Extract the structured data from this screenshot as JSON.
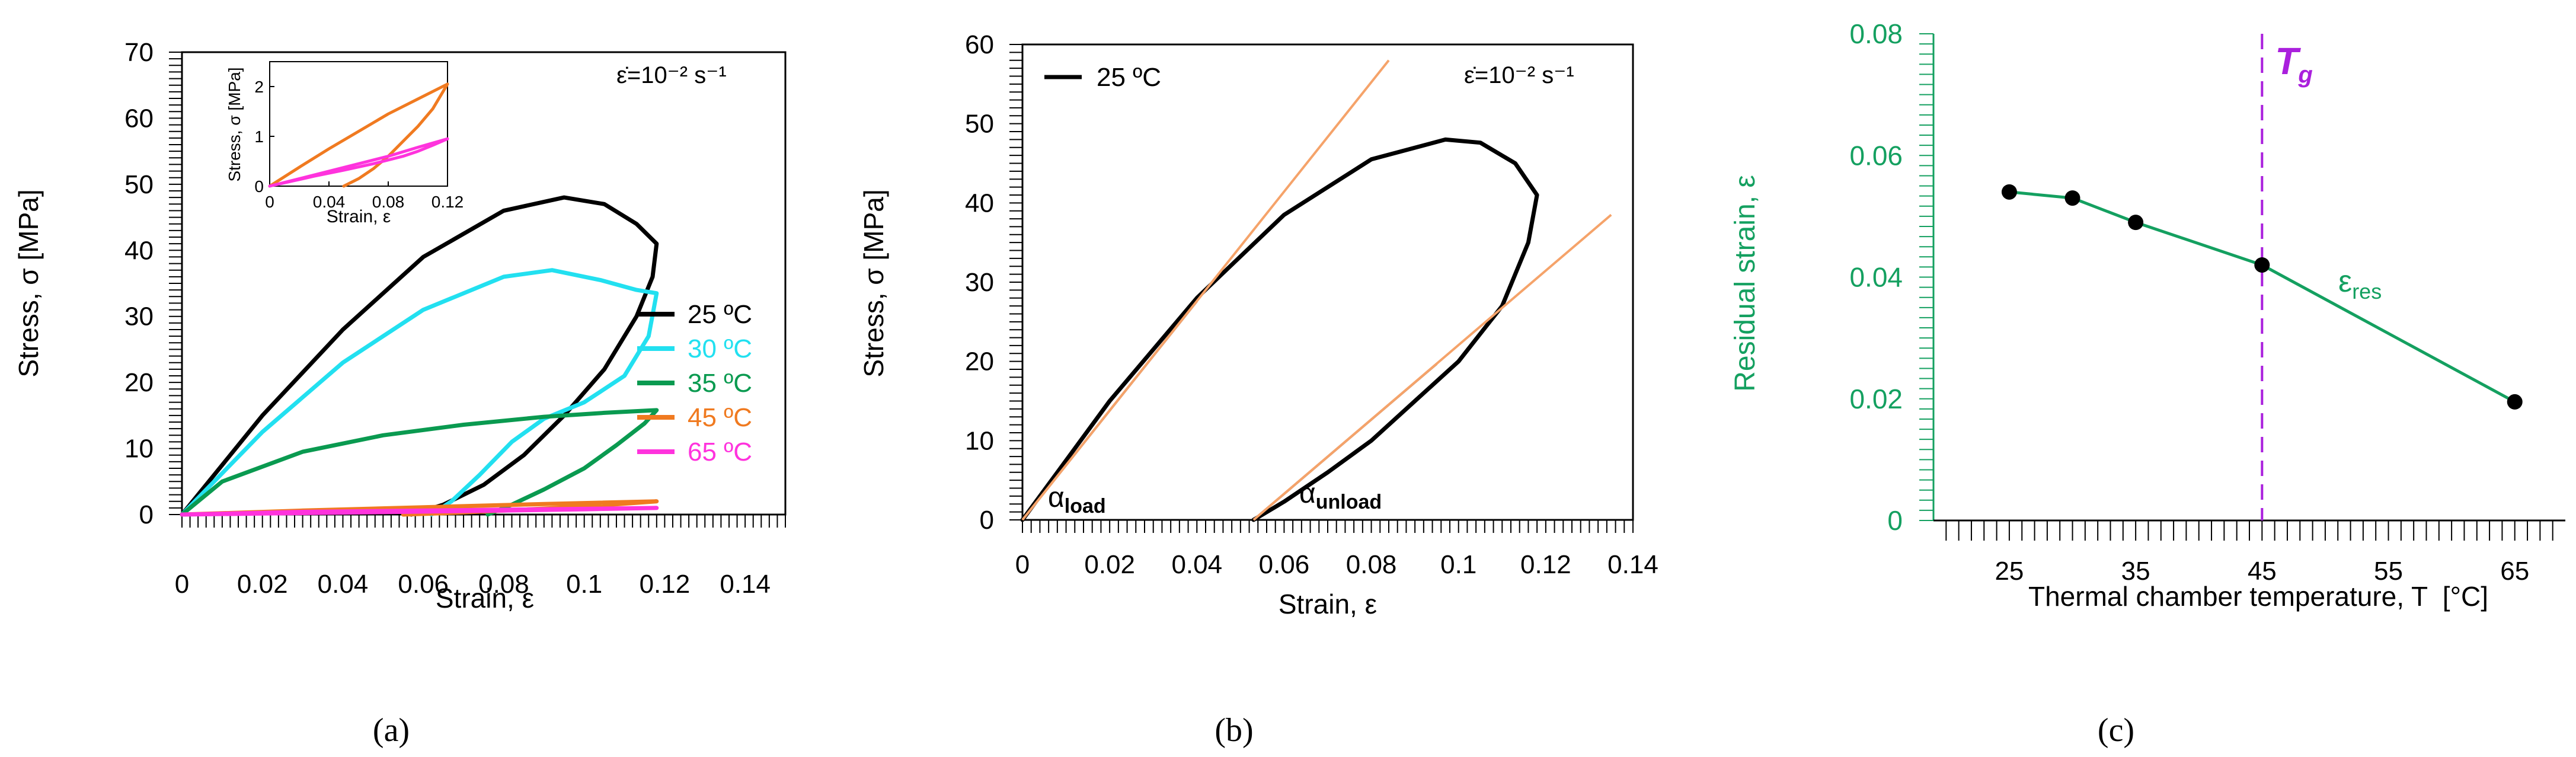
{
  "colors": {
    "black": "#000000",
    "cyan": "#22e0f0",
    "green": "#0a9a50",
    "orange": "#f07a20",
    "magenta": "#ff33dd",
    "tan": "#f5a36a",
    "brown": "#7a4a30",
    "purple": "#aa20dd",
    "teal": "#14a060"
  },
  "chart_data": [
    {
      "panel": "a",
      "caption": "(a)",
      "type": "line",
      "title": "",
      "annotation": "ε̇=10⁻² s⁻¹",
      "xlabel": "Strain, ε",
      "ylabel": "Stress, σ [MPa]",
      "xlim": [
        0,
        0.15
      ],
      "ylim": [
        0,
        70
      ],
      "xticks": [
        {
          "v": 0,
          "t": "0"
        },
        {
          "v": 0.02,
          "t": "0.02"
        },
        {
          "v": 0.04,
          "t": "0.04"
        },
        {
          "v": 0.06,
          "t": "0.06"
        },
        {
          "v": 0.08,
          "t": "0.08"
        },
        {
          "v": 0.1,
          "t": "0.1"
        },
        {
          "v": 0.12,
          "t": "0.12"
        },
        {
          "v": 0.14,
          "t": "0.14"
        }
      ],
      "yticks": [
        {
          "v": 0,
          "t": "0"
        },
        {
          "v": 10,
          "t": "10"
        },
        {
          "v": 20,
          "t": "20"
        },
        {
          "v": 30,
          "t": "30"
        },
        {
          "v": 40,
          "t": "40"
        },
        {
          "v": 50,
          "t": "50"
        },
        {
          "v": 60,
          "t": "60"
        },
        {
          "v": 70,
          "t": "70"
        }
      ],
      "legend_position": "right",
      "series": [
        {
          "name": "25 ºC",
          "color": "#000000",
          "x": [
            0,
            0.02,
            0.04,
            0.06,
            0.08,
            0.095,
            0.105,
            0.113,
            0.118,
            0.117,
            0.113,
            0.105,
            0.095,
            0.085,
            0.075,
            0.065,
            0.057
          ],
          "y": [
            0,
            15,
            28,
            39,
            46,
            48,
            47,
            44,
            41,
            36,
            30,
            22,
            15,
            9,
            4.5,
            1.5,
            0
          ]
        },
        {
          "name": "30 ºC",
          "color": "#22e0f0",
          "x": [
            0,
            0.02,
            0.04,
            0.06,
            0.08,
            0.092,
            0.104,
            0.113,
            0.118,
            0.116,
            0.11,
            0.1,
            0.09,
            0.082,
            0.074,
            0.067,
            0.062
          ],
          "y": [
            0,
            12.5,
            23,
            31,
            36,
            37,
            35.5,
            34,
            33.5,
            27,
            21,
            17,
            14.5,
            11,
            6,
            2,
            0
          ]
        },
        {
          "name": "35 ºC",
          "color": "#0a9a50",
          "x": [
            0,
            0.01,
            0.03,
            0.05,
            0.07,
            0.09,
            0.105,
            0.118,
            0.115,
            0.108,
            0.1,
            0.09,
            0.082,
            0.076
          ],
          "y": [
            0,
            5,
            9.5,
            12,
            13.6,
            14.8,
            15.4,
            15.8,
            13.8,
            10.5,
            7,
            3.8,
            1.5,
            0
          ]
        },
        {
          "name": "45 ºC",
          "color": "#f07a20",
          "x": [
            0,
            0.03,
            0.06,
            0.09,
            0.118,
            0.1,
            0.08,
            0.065,
            0.055
          ],
          "y": [
            0,
            0.6,
            1.1,
            1.6,
            2.0,
            1.2,
            0.6,
            0.2,
            0
          ]
        },
        {
          "name": "65 ºC",
          "color": "#ff33dd",
          "x": [
            0,
            0.03,
            0.06,
            0.09,
            0.118,
            0.1,
            0.08,
            0.06,
            0.04,
            0.02,
            0
          ],
          "y": [
            0,
            0.4,
            0.6,
            0.8,
            1.0,
            0.8,
            0.6,
            0.45,
            0.3,
            0.15,
            0
          ]
        }
      ],
      "inset": {
        "type": "line",
        "xlabel": "Strain, ε",
        "ylabel": "Stress, σ [MPa]",
        "xlim": [
          0,
          0.12
        ],
        "ylim": [
          0,
          2.5
        ],
        "xticks": [
          {
            "v": 0,
            "t": "0"
          },
          {
            "v": 0.04,
            "t": "0.04"
          },
          {
            "v": 0.08,
            "t": "0.08"
          },
          {
            "v": 0.12,
            "t": "0.12"
          }
        ],
        "yticks": [
          {
            "v": 0,
            "t": "0"
          },
          {
            "v": 1,
            "t": "1"
          },
          {
            "v": 2,
            "t": "2"
          }
        ],
        "series": [
          {
            "name": "45 ºC",
            "color": "#f07a20",
            "x": [
              0,
              0.02,
              0.04,
              0.06,
              0.08,
              0.1,
              0.12,
              0.11,
              0.1,
              0.09,
              0.08,
              0.07,
              0.06,
              0.05
            ],
            "y": [
              0,
              0.38,
              0.75,
              1.1,
              1.45,
              1.75,
              2.05,
              1.55,
              1.2,
              0.9,
              0.6,
              0.35,
              0.15,
              0
            ]
          },
          {
            "name": "65 ºC",
            "color": "#ff33dd",
            "x": [
              0,
              0.02,
              0.04,
              0.06,
              0.08,
              0.1,
              0.12,
              0.11,
              0.1,
              0.09,
              0.07,
              0.05,
              0.03,
              0.015,
              0.003
            ],
            "y": [
              0,
              0.15,
              0.3,
              0.45,
              0.6,
              0.78,
              0.95,
              0.82,
              0.7,
              0.6,
              0.45,
              0.32,
              0.2,
              0.1,
              0.02
            ]
          }
        ]
      }
    },
    {
      "panel": "b",
      "caption": "(b)",
      "type": "line",
      "title": "",
      "annotation": "ε̇=10⁻² s⁻¹",
      "xlabel": "Strain, ε",
      "ylabel": "Stress, σ [MPa]",
      "xlim": [
        0,
        0.14
      ],
      "ylim": [
        0,
        60
      ],
      "xticks": [
        {
          "v": 0,
          "t": "0"
        },
        {
          "v": 0.02,
          "t": "0.02"
        },
        {
          "v": 0.04,
          "t": "0.04"
        },
        {
          "v": 0.06,
          "t": "0.06"
        },
        {
          "v": 0.08,
          "t": "0.08"
        },
        {
          "v": 0.1,
          "t": "0.1"
        },
        {
          "v": 0.12,
          "t": "0.12"
        },
        {
          "v": 0.14,
          "t": "0.14"
        }
      ],
      "yticks": [
        {
          "v": 0,
          "t": "0"
        },
        {
          "v": 10,
          "t": "10"
        },
        {
          "v": 20,
          "t": "20"
        },
        {
          "v": 30,
          "t": "30"
        },
        {
          "v": 40,
          "t": "40"
        },
        {
          "v": 50,
          "t": "50"
        },
        {
          "v": 60,
          "t": "60"
        }
      ],
      "legend_position": "top-left",
      "series": [
        {
          "name": "25 ºC",
          "color": "#000000",
          "x": [
            0,
            0.02,
            0.04,
            0.06,
            0.08,
            0.097,
            0.105,
            0.113,
            0.118,
            0.116,
            0.11,
            0.1,
            0.09,
            0.08,
            0.07,
            0.06,
            0.053
          ],
          "y": [
            0,
            15,
            28,
            38.5,
            45.5,
            48,
            47.6,
            45,
            41,
            35,
            27,
            20,
            15,
            10,
            6,
            2.3,
            0
          ]
        }
      ],
      "fit_lines": [
        {
          "name": "α_load",
          "label_main": "α",
          "label_sub": "load",
          "color": "#f5a36a",
          "x": [
            0,
            0.084
          ],
          "y": [
            0,
            58
          ]
        },
        {
          "name": "α_unload",
          "label_main": "α",
          "label_sub": "unload",
          "color": "#f5a36a",
          "x": [
            0.053,
            0.135
          ],
          "y": [
            0,
            38.5
          ]
        }
      ]
    },
    {
      "panel": "c",
      "caption": "(c)",
      "type": "line",
      "title": "",
      "xlabel": "Thermal chamber temperature, T  [°C]",
      "ylabel": "Residual strain, ε",
      "xlim": [
        19,
        69
      ],
      "ylim": [
        0,
        0.08
      ],
      "xticks": [
        {
          "v": 25,
          "t": "25"
        },
        {
          "v": 35,
          "t": "35"
        },
        {
          "v": 45,
          "t": "45"
        },
        {
          "v": 55,
          "t": "55"
        },
        {
          "v": 65,
          "t": "65"
        }
      ],
      "yticks": [
        {
          "v": 0,
          "t": "0"
        },
        {
          "v": 0.02,
          "t": "0.02"
        },
        {
          "v": 0.04,
          "t": "0.04"
        },
        {
          "v": 0.06,
          "t": "0.06"
        },
        {
          "v": 0.08,
          "t": "0.08"
        }
      ],
      "series": [
        {
          "name": "ε_res",
          "label_main": "ε",
          "label_sub": "res",
          "color": "#14a060",
          "x": [
            25,
            30,
            35,
            45,
            65
          ],
          "y": [
            0.054,
            0.053,
            0.049,
            0.042,
            0.0195
          ]
        }
      ],
      "vline": {
        "x": 45,
        "label_main": "T",
        "label_sub": "g",
        "color": "#aa20dd",
        "style": "dashed"
      }
    }
  ]
}
